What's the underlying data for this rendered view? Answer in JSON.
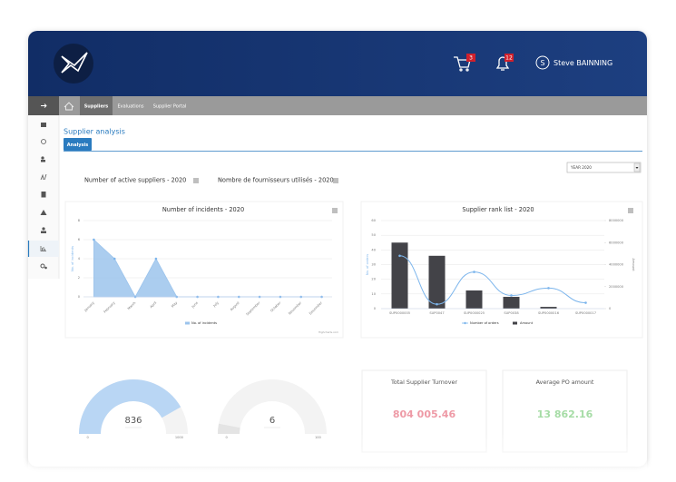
{
  "header": {
    "user_initial": "S",
    "user_name": "Steve BAINNING",
    "cart_count": 3,
    "notification_count": 12
  },
  "nav": {
    "tabs": [
      "Suppliers",
      "Evaluations",
      "Supplier Portal"
    ]
  },
  "page": {
    "title": "Supplier analysis",
    "tab": "Analysis",
    "year_select": "YEAR 2020",
    "headings": [
      "Number of active suppliers - 2020",
      "Nombre de fournisseurs utilisés - 2020"
    ]
  },
  "chart_data": [
    {
      "type": "area",
      "title": "Number of incidents - 2020",
      "y_label": "No. of incidents",
      "categories": [
        "January",
        "February",
        "March",
        "April",
        "May",
        "June",
        "July",
        "August",
        "September",
        "October",
        "November",
        "December"
      ],
      "series": [
        {
          "name": "No. of incidents",
          "color": "#9cc4ec",
          "values": [
            6,
            4,
            0,
            4,
            0,
            0,
            0,
            0,
            0,
            0,
            0,
            0
          ]
        }
      ],
      "ylim": [
        0,
        8
      ],
      "yticks": [
        0,
        2,
        4,
        6,
        8
      ],
      "grid": true,
      "credit": "Highcharts.com"
    },
    {
      "type": "combo",
      "title": "Supplier rank list - 2020",
      "y_label": "No. of orders",
      "y2_label": "Amount",
      "categories": [
        "SUP0000005",
        "SUP0047",
        "SUP0000025",
        "SUP0038",
        "SUP0000016",
        "SUP0000017"
      ],
      "series": [
        {
          "name": "Number of orders",
          "color": "#7cb5ec",
          "values": [
            36,
            3,
            25,
            9,
            14,
            4
          ]
        },
        {
          "name": "Amount",
          "color": "#434348",
          "axis": "y2",
          "values": [
            6000000,
            4800000,
            1650000,
            1070000,
            160000,
            0
          ]
        }
      ],
      "ylim": [
        0,
        60
      ],
      "yticks": [
        0,
        10,
        20,
        30,
        40,
        50,
        60
      ],
      "y2lim": [
        0,
        8000000
      ],
      "y2ticks": [
        0,
        2000000,
        4000000,
        6000000,
        8000000
      ],
      "grid": true
    },
    {
      "type": "gauge",
      "value": 836,
      "ylim": [
        0,
        1000
      ],
      "yticks": [
        0,
        1000
      ],
      "color": "#b9d6f4"
    },
    {
      "type": "gauge",
      "value": 6,
      "ylim": [
        0,
        100
      ],
      "yticks": [
        0,
        100
      ],
      "color": "#e4e4e4"
    }
  ],
  "kpis": [
    {
      "title": "Total Supplier Turnover",
      "value": "804 005.46",
      "color": "#ee9aa6"
    },
    {
      "title": "Average PO amount",
      "value": "13 862.16",
      "color": "#a6dca6"
    }
  ]
}
